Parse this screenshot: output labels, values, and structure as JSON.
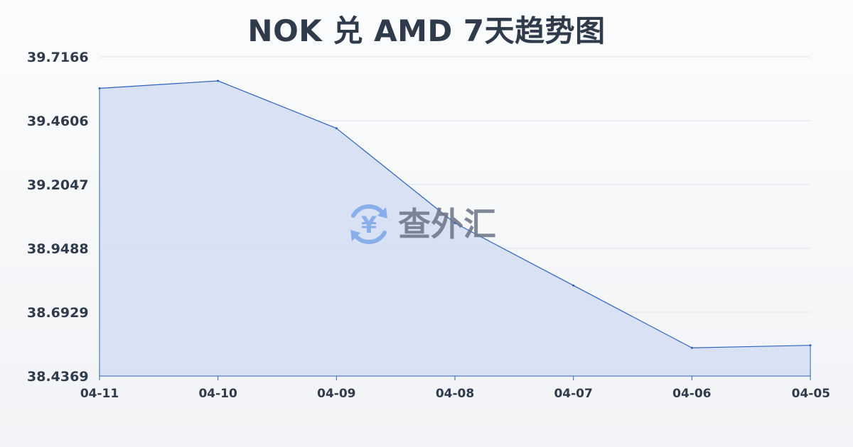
{
  "colors": {
    "line": "#2c62c0",
    "area_fill": "#d3ddf3",
    "grid": "#dde3ea",
    "axis": "#2c62c0",
    "title": "#2f3a4b",
    "watermark_icon": "#7aa7e9",
    "watermark_text": "#6b7485"
  },
  "watermark": {
    "text": "查外汇",
    "icon": "yen-exchange-icon",
    "icon_glyph": "¥"
  },
  "chart_data": {
    "type": "area",
    "title": "NOK 兑 AMD 7天趋势图",
    "xlabel": "",
    "ylabel": "",
    "categories": [
      "04-11",
      "04-10",
      "04-09",
      "04-08",
      "04-07",
      "04-06",
      "04-05"
    ],
    "series": [
      {
        "values": [
          39.59,
          39.62,
          39.43,
          39.05,
          38.8,
          38.55,
          38.56
        ]
      }
    ],
    "y_ticks": [
      "39.7166",
      "39.4606",
      "39.2047",
      "38.9488",
      "38.6929",
      "38.4369"
    ],
    "ylim": [
      38.4369,
      39.7166
    ],
    "grid": true,
    "legend": "none"
  }
}
